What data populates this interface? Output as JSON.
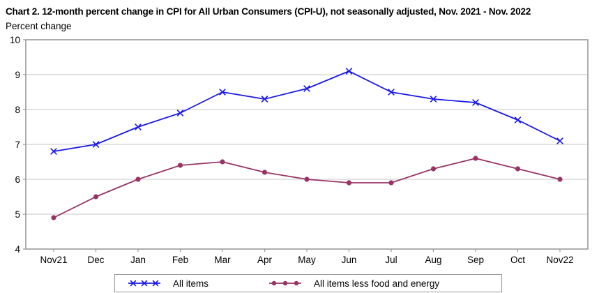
{
  "chart_data": {
    "type": "line",
    "title": "Chart 2. 12-month percent change in CPI for All Urban Consumers (CPI-U), not seasonally adjusted, Nov. 2021 - Nov. 2022",
    "ylabel": "Percent change",
    "xlabel": "",
    "categories": [
      "Nov21",
      "Dec",
      "Jan",
      "Feb",
      "Mar",
      "Apr",
      "May",
      "Jun",
      "Jul",
      "Aug",
      "Sep",
      "Oct",
      "Nov22"
    ],
    "series": [
      {
        "name": "All items",
        "marker": "x",
        "color": "#1a1ae6",
        "values": [
          6.8,
          7.0,
          7.5,
          7.9,
          8.5,
          8.3,
          8.6,
          9.1,
          8.5,
          8.3,
          8.2,
          7.7,
          7.1
        ]
      },
      {
        "name": "All items less food and energy",
        "marker": "circle",
        "color": "#993366",
        "values": [
          4.9,
          5.5,
          6.0,
          6.4,
          6.5,
          6.2,
          6.0,
          5.9,
          5.9,
          6.3,
          6.6,
          6.3,
          6.0
        ]
      }
    ],
    "ylim": [
      4,
      10
    ],
    "ytick_step": 1,
    "yticks": [
      4,
      5,
      6,
      7,
      8,
      9,
      10
    ],
    "grid": "horizontal",
    "legend_position": "bottom",
    "colors": {
      "grid": "#d2d2d2",
      "axis": "#999999",
      "text": "#000000",
      "background": "#ffffff"
    }
  }
}
